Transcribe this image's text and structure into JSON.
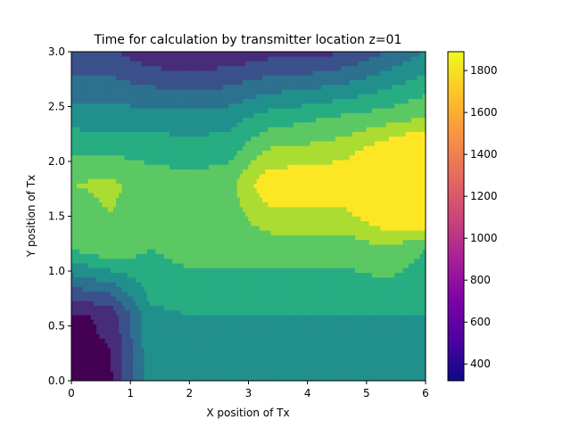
{
  "chart_data": {
    "type": "contourf",
    "title": "Time for calculation by transmitter location z=01",
    "xlabel": "X position of Tx",
    "ylabel": "Y position of Tx",
    "xlim": [
      0,
      6
    ],
    "ylim": [
      0,
      3
    ],
    "x": [
      0,
      0.6667,
      1.3333,
      2.0,
      2.6667,
      3.3333,
      4.0,
      4.6667,
      5.3333,
      6.0
    ],
    "y": [
      0,
      0.6,
      1.2,
      1.8,
      2.4,
      3.0
    ],
    "z": [
      [
        480,
        480,
        850,
        880,
        880,
        880,
        900,
        880,
        880,
        880
      ],
      [
        480,
        520,
        880,
        900,
        900,
        900,
        900,
        900,
        900,
        900
      ],
      [
        1000,
        1080,
        1000,
        1040,
        1040,
        1040,
        1040,
        1040,
        1080,
        1000
      ],
      [
        1100,
        1120,
        1060,
        1040,
        1060,
        1280,
        1280,
        1300,
        1500,
        1640
      ],
      [
        860,
        840,
        860,
        840,
        860,
        940,
        980,
        1020,
        1050,
        1100
      ],
      [
        620,
        620,
        520,
        500,
        520,
        560,
        560,
        600,
        700,
        800
      ]
    ],
    "levels": [
      400,
      500,
      600,
      700,
      800,
      900,
      1000,
      1100,
      1200,
      1300,
      1400,
      1500,
      1600,
      1700,
      1800,
      1900
    ],
    "fill_colors": [
      "#440154",
      "#472c7a",
      "#3b518b",
      "#2c718e",
      "#21908d",
      "#27ad81",
      "#5cc863",
      "#aadc32",
      "#fde725"
    ],
    "xticks": [
      "0",
      "1",
      "2",
      "3",
      "4",
      "5",
      "6"
    ],
    "yticks": [
      "0.0",
      "0.5",
      "1.0",
      "1.5",
      "2.0",
      "2.5",
      "3.0"
    ],
    "colorbar": {
      "cmap": "plasma",
      "min": 320,
      "max": 1890,
      "ticks": [
        "400",
        "600",
        "800",
        "1000",
        "1200",
        "1400",
        "1600",
        "1800"
      ]
    },
    "grid": false
  }
}
